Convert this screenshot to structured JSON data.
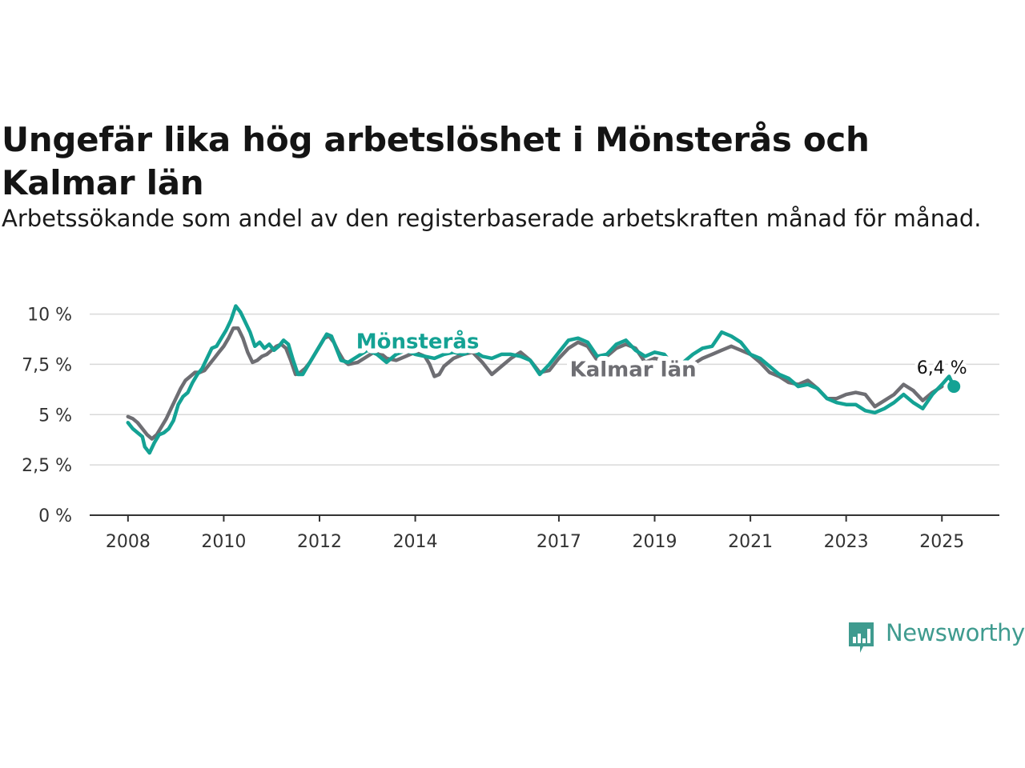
{
  "title": "Ungefär lika hög arbetslöshet i Mönsterås och Kalmar län",
  "subtitle": "Arbetssökande som andel av den registerbaserade arbetskraften månad för månad.",
  "brand": {
    "name": "Newsworthy",
    "color": "#3f9b8f"
  },
  "chart_data": {
    "type": "line",
    "title": "Ungefär lika hög arbetslöshet i Mönsterås och Kalmar län",
    "subtitle": "Arbetssökande som andel av den registerbaserade arbetskraften månad för månad.",
    "xlabel": "",
    "ylabel": "",
    "y_unit": "%",
    "ylim": [
      0,
      10.5
    ],
    "xlim": [
      2007.2,
      2026.2
    ],
    "yticks": [
      0,
      2.5,
      5,
      7.5,
      10
    ],
    "ytick_labels": [
      "0 %",
      "2,5 %",
      "5 %",
      "7,5 %",
      "10 %"
    ],
    "xticks": [
      2008,
      2010,
      2012,
      2014,
      2017,
      2019,
      2021,
      2023,
      2025
    ],
    "xtick_labels": [
      "2008",
      "2010",
      "2012",
      "2014",
      "2017",
      "2019",
      "2021",
      "2023",
      "2025"
    ],
    "grid": "horizontal",
    "legend": "none (series labeled directly on lines)",
    "annotation": {
      "text": "6,4 %",
      "x": 2025.25,
      "y": 6.4,
      "series": "Mönsterås"
    },
    "series": [
      {
        "name": "Kalmar län",
        "color": "#6e6e73",
        "points": [
          [
            2008.0,
            4.9
          ],
          [
            2008.1,
            4.8
          ],
          [
            2008.2,
            4.6
          ],
          [
            2008.3,
            4.3
          ],
          [
            2008.4,
            4.0
          ],
          [
            2008.5,
            3.8
          ],
          [
            2008.6,
            4.0
          ],
          [
            2008.7,
            4.4
          ],
          [
            2008.8,
            4.8
          ],
          [
            2008.9,
            5.3
          ],
          [
            2009.0,
            5.8
          ],
          [
            2009.1,
            6.3
          ],
          [
            2009.2,
            6.7
          ],
          [
            2009.3,
            6.9
          ],
          [
            2009.4,
            7.1
          ],
          [
            2009.5,
            7.1
          ],
          [
            2009.6,
            7.2
          ],
          [
            2009.7,
            7.5
          ],
          [
            2009.8,
            7.8
          ],
          [
            2009.9,
            8.1
          ],
          [
            2010.0,
            8.4
          ],
          [
            2010.1,
            8.8
          ],
          [
            2010.2,
            9.3
          ],
          [
            2010.3,
            9.3
          ],
          [
            2010.4,
            8.8
          ],
          [
            2010.5,
            8.1
          ],
          [
            2010.6,
            7.6
          ],
          [
            2010.7,
            7.7
          ],
          [
            2010.8,
            7.9
          ],
          [
            2010.9,
            8.0
          ],
          [
            2011.0,
            8.2
          ],
          [
            2011.1,
            8.4
          ],
          [
            2011.2,
            8.5
          ],
          [
            2011.3,
            8.3
          ],
          [
            2011.4,
            7.7
          ],
          [
            2011.5,
            7.0
          ],
          [
            2011.6,
            7.1
          ],
          [
            2011.7,
            7.3
          ],
          [
            2011.8,
            7.6
          ],
          [
            2011.9,
            8.0
          ],
          [
            2012.0,
            8.4
          ],
          [
            2012.1,
            8.8
          ],
          [
            2012.2,
            8.9
          ],
          [
            2012.3,
            8.6
          ],
          [
            2012.4,
            8.1
          ],
          [
            2012.5,
            7.7
          ],
          [
            2012.6,
            7.5
          ],
          [
            2012.8,
            7.6
          ],
          [
            2013.0,
            7.9
          ],
          [
            2013.2,
            8.2
          ],
          [
            2013.4,
            7.8
          ],
          [
            2013.6,
            7.7
          ],
          [
            2013.8,
            7.9
          ],
          [
            2014.0,
            8.1
          ],
          [
            2014.2,
            7.9
          ],
          [
            2014.3,
            7.5
          ],
          [
            2014.4,
            6.9
          ],
          [
            2014.5,
            7.0
          ],
          [
            2014.6,
            7.4
          ],
          [
            2014.8,
            7.8
          ],
          [
            2015.0,
            8.0
          ],
          [
            2015.2,
            8.1
          ],
          [
            2015.4,
            7.6
          ],
          [
            2015.6,
            7.0
          ],
          [
            2015.8,
            7.4
          ],
          [
            2016.0,
            7.8
          ],
          [
            2016.2,
            8.1
          ],
          [
            2016.4,
            7.7
          ],
          [
            2016.6,
            7.1
          ],
          [
            2016.8,
            7.2
          ],
          [
            2017.0,
            7.8
          ],
          [
            2017.2,
            8.3
          ],
          [
            2017.4,
            8.6
          ],
          [
            2017.6,
            8.4
          ],
          [
            2017.8,
            7.7
          ],
          [
            2018.0,
            7.9
          ],
          [
            2018.2,
            8.3
          ],
          [
            2018.4,
            8.5
          ],
          [
            2018.6,
            8.3
          ],
          [
            2018.8,
            7.6
          ],
          [
            2019.0,
            7.8
          ],
          [
            2019.2,
            7.7
          ],
          [
            2019.4,
            7.4
          ],
          [
            2019.6,
            7.3
          ],
          [
            2019.8,
            7.5
          ],
          [
            2020.0,
            7.8
          ],
          [
            2020.2,
            8.0
          ],
          [
            2020.4,
            8.2
          ],
          [
            2020.6,
            8.4
          ],
          [
            2020.8,
            8.2
          ],
          [
            2021.0,
            8.0
          ],
          [
            2021.2,
            7.6
          ],
          [
            2021.4,
            7.1
          ],
          [
            2021.6,
            6.9
          ],
          [
            2021.8,
            6.6
          ],
          [
            2022.0,
            6.5
          ],
          [
            2022.2,
            6.7
          ],
          [
            2022.4,
            6.3
          ],
          [
            2022.6,
            5.8
          ],
          [
            2022.8,
            5.8
          ],
          [
            2023.0,
            6.0
          ],
          [
            2023.2,
            6.1
          ],
          [
            2023.4,
            6.0
          ],
          [
            2023.6,
            5.4
          ],
          [
            2023.8,
            5.7
          ],
          [
            2024.0,
            6.0
          ],
          [
            2024.2,
            6.5
          ],
          [
            2024.4,
            6.2
          ],
          [
            2024.6,
            5.7
          ],
          [
            2024.8,
            6.1
          ],
          [
            2025.0,
            6.4
          ]
        ]
      },
      {
        "name": "Mönsterås",
        "color": "#14a294",
        "points": [
          [
            2008.0,
            4.6
          ],
          [
            2008.1,
            4.3
          ],
          [
            2008.2,
            4.1
          ],
          [
            2008.3,
            3.9
          ],
          [
            2008.35,
            3.4
          ],
          [
            2008.45,
            3.1
          ],
          [
            2008.55,
            3.6
          ],
          [
            2008.65,
            4.0
          ],
          [
            2008.75,
            4.1
          ],
          [
            2008.85,
            4.3
          ],
          [
            2008.95,
            4.7
          ],
          [
            2009.05,
            5.5
          ],
          [
            2009.15,
            5.9
          ],
          [
            2009.25,
            6.1
          ],
          [
            2009.35,
            6.6
          ],
          [
            2009.45,
            7.0
          ],
          [
            2009.55,
            7.3
          ],
          [
            2009.65,
            7.8
          ],
          [
            2009.75,
            8.3
          ],
          [
            2009.85,
            8.4
          ],
          [
            2009.95,
            8.8
          ],
          [
            2010.05,
            9.2
          ],
          [
            2010.15,
            9.7
          ],
          [
            2010.25,
            10.4
          ],
          [
            2010.35,
            10.1
          ],
          [
            2010.45,
            9.6
          ],
          [
            2010.55,
            9.1
          ],
          [
            2010.65,
            8.4
          ],
          [
            2010.75,
            8.6
          ],
          [
            2010.85,
            8.3
          ],
          [
            2010.95,
            8.5
          ],
          [
            2011.05,
            8.2
          ],
          [
            2011.15,
            8.4
          ],
          [
            2011.25,
            8.7
          ],
          [
            2011.35,
            8.5
          ],
          [
            2011.45,
            7.7
          ],
          [
            2011.55,
            7.0
          ],
          [
            2011.65,
            7.0
          ],
          [
            2011.75,
            7.4
          ],
          [
            2011.85,
            7.8
          ],
          [
            2011.95,
            8.2
          ],
          [
            2012.05,
            8.6
          ],
          [
            2012.15,
            9.0
          ],
          [
            2012.25,
            8.9
          ],
          [
            2012.35,
            8.3
          ],
          [
            2012.45,
            7.7
          ],
          [
            2012.6,
            7.6
          ],
          [
            2012.8,
            7.9
          ],
          [
            2013.0,
            8.2
          ],
          [
            2013.2,
            8.0
          ],
          [
            2013.4,
            7.6
          ],
          [
            2013.6,
            8.0
          ],
          [
            2013.8,
            8.2
          ],
          [
            2014.0,
            8.0
          ],
          [
            2014.2,
            7.9
          ],
          [
            2014.4,
            7.8
          ],
          [
            2014.6,
            8.0
          ],
          [
            2014.8,
            8.1
          ],
          [
            2015.0,
            8.0
          ],
          [
            2015.2,
            8.2
          ],
          [
            2015.4,
            7.9
          ],
          [
            2015.6,
            7.8
          ],
          [
            2015.8,
            8.0
          ],
          [
            2016.0,
            8.0
          ],
          [
            2016.2,
            7.9
          ],
          [
            2016.4,
            7.7
          ],
          [
            2016.6,
            7.0
          ],
          [
            2016.8,
            7.5
          ],
          [
            2017.0,
            8.1
          ],
          [
            2017.2,
            8.7
          ],
          [
            2017.4,
            8.8
          ],
          [
            2017.6,
            8.6
          ],
          [
            2017.8,
            7.9
          ],
          [
            2018.0,
            8.0
          ],
          [
            2018.2,
            8.5
          ],
          [
            2018.4,
            8.7
          ],
          [
            2018.6,
            8.2
          ],
          [
            2018.8,
            7.9
          ],
          [
            2019.0,
            8.1
          ],
          [
            2019.2,
            8.0
          ],
          [
            2019.4,
            7.4
          ],
          [
            2019.6,
            7.6
          ],
          [
            2019.8,
            8.0
          ],
          [
            2020.0,
            8.3
          ],
          [
            2020.2,
            8.4
          ],
          [
            2020.4,
            9.1
          ],
          [
            2020.6,
            8.9
          ],
          [
            2020.8,
            8.6
          ],
          [
            2021.0,
            8.0
          ],
          [
            2021.2,
            7.8
          ],
          [
            2021.4,
            7.4
          ],
          [
            2021.6,
            7.0
          ],
          [
            2021.8,
            6.8
          ],
          [
            2022.0,
            6.4
          ],
          [
            2022.2,
            6.5
          ],
          [
            2022.4,
            6.3
          ],
          [
            2022.6,
            5.8
          ],
          [
            2022.8,
            5.6
          ],
          [
            2023.0,
            5.5
          ],
          [
            2023.2,
            5.5
          ],
          [
            2023.4,
            5.2
          ],
          [
            2023.6,
            5.1
          ],
          [
            2023.8,
            5.3
          ],
          [
            2024.0,
            5.6
          ],
          [
            2024.2,
            6.0
          ],
          [
            2024.4,
            5.6
          ],
          [
            2024.6,
            5.3
          ],
          [
            2024.8,
            6.0
          ],
          [
            2025.0,
            6.5
          ],
          [
            2025.15,
            6.9
          ],
          [
            2025.25,
            6.4
          ]
        ]
      }
    ]
  }
}
